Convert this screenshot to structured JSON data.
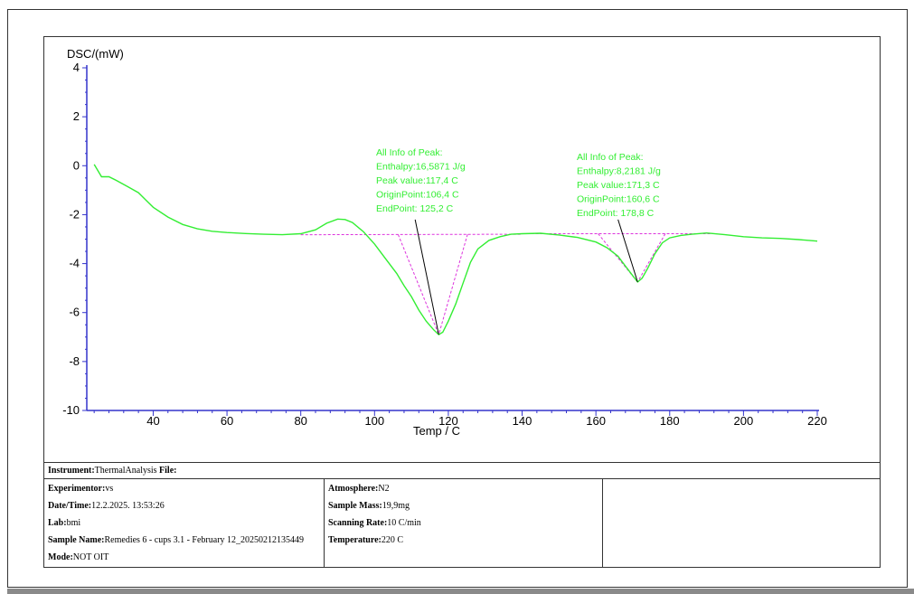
{
  "chart_data": {
    "type": "line",
    "ylabel": "DSC/(mW)",
    "xlabel": "Temp / C",
    "xlim": [
      22,
      222
    ],
    "ylim": [
      -10,
      4.2
    ],
    "x_ticks": [
      40,
      60,
      80,
      100,
      120,
      140,
      160,
      180,
      200,
      220
    ],
    "y_ticks": [
      4,
      2,
      0,
      -2,
      -4,
      -6,
      -8,
      -10
    ],
    "series": [
      {
        "color": "#33ee33",
        "x": [
          24,
          26,
          28,
          30,
          33,
          36,
          38,
          40,
          44,
          48,
          52,
          56,
          60,
          65,
          70,
          75,
          80,
          84,
          87,
          90,
          92,
          94,
          97,
          100,
          103,
          106,
          108,
          110,
          112,
          114,
          116,
          117.4,
          118.5,
          120,
          122,
          124,
          126,
          128,
          131,
          134,
          137,
          140,
          145,
          150,
          155,
          160,
          163,
          166,
          168,
          170,
          171.3,
          172.5,
          174,
          176,
          178,
          180,
          183,
          186,
          190,
          195,
          200,
          205,
          210,
          215,
          220
        ],
        "y": [
          0.05,
          -0.45,
          -0.45,
          -0.6,
          -0.85,
          -1.1,
          -1.4,
          -1.7,
          -2.1,
          -2.4,
          -2.58,
          -2.68,
          -2.73,
          -2.77,
          -2.8,
          -2.82,
          -2.78,
          -2.62,
          -2.35,
          -2.18,
          -2.2,
          -2.32,
          -2.7,
          -3.2,
          -3.8,
          -4.4,
          -4.9,
          -5.35,
          -5.9,
          -6.35,
          -6.7,
          -6.9,
          -6.8,
          -6.35,
          -5.65,
          -4.8,
          -3.95,
          -3.4,
          -3.05,
          -2.9,
          -2.8,
          -2.78,
          -2.76,
          -2.83,
          -2.93,
          -3.12,
          -3.35,
          -3.7,
          -4.1,
          -4.5,
          -4.75,
          -4.6,
          -4.2,
          -3.6,
          -3.15,
          -2.95,
          -2.85,
          -2.8,
          -2.75,
          -2.82,
          -2.9,
          -2.95,
          -2.97,
          -3.02,
          -3.08
        ]
      }
    ],
    "peaks": [
      {
        "info_lines": [
          "All Info of Peak:",
          "Enthalpy:16,5871 J/g",
          "Peak value:117,4 C",
          "OriginPoint:106,4 C",
          "EndPoint:  125,2 C"
        ],
        "peak_x": 117.4,
        "peak_y": -6.9,
        "origin_x": 106.4,
        "end_x": 125.2,
        "baseline": [
          [
            80,
            -2.82
          ],
          [
            140,
            -2.8
          ]
        ],
        "pointer_from": [
          111,
          -2.2
        ]
      },
      {
        "info_lines": [
          "All Info of Peak:",
          "Enthalpy:8,2181 J/g",
          "Peak value:171,3 C",
          "OriginPoint:160,6 C",
          "EndPoint:  178,8 C"
        ],
        "peak_x": 171.3,
        "peak_y": -4.75,
        "origin_x": 160.6,
        "end_x": 178.8,
        "baseline": [
          [
            140,
            -2.78
          ],
          [
            192,
            -2.78
          ]
        ],
        "pointer_from": [
          166,
          -2.2
        ]
      }
    ]
  },
  "info": {
    "instrument_label": "Instrument:",
    "instrument_value": "ThermalAnalysis",
    "file_label": "File:",
    "experimentor_label": "Experimentor:",
    "experimentor_value": "vs",
    "datetime_label": "Date/Time:",
    "datetime_value": "12.2.2025. 13:53:26",
    "lab_label": "Lab:",
    "lab_value": "bmi",
    "sample_name_label": "Sample Name:",
    "sample_name_value": "Remedies 6 - cups 3.1 - February 12_20250212135449",
    "mode_label": "Mode:",
    "mode_value": "NOT OIT",
    "atmosphere_label": "Atmosphere:",
    "atmosphere_value": "N2",
    "sample_mass_label": "Sample Mass:",
    "sample_mass_value": "19,9mg",
    "scanning_rate_label": "Scanning Rate:",
    "scanning_rate_value": "10 C/min",
    "temperature_label": "Temperature:",
    "temperature_value": "220 C"
  }
}
